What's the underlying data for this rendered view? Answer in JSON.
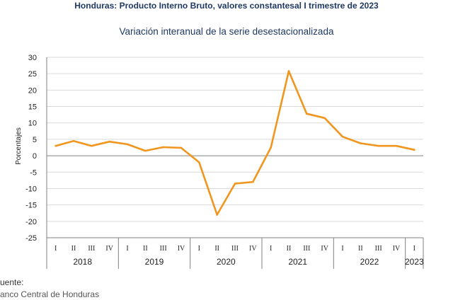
{
  "header": {
    "title": "Honduras: Producto Interno Bruto, valores constantesal I trimestre de 2023",
    "subtitle": "Variación interanual de la serie desestacionalizada"
  },
  "footer": {
    "source_label": "uente:",
    "source_text": "anco Central de Honduras"
  },
  "colors": {
    "line": "#f0961e",
    "grid": "#d9d9d9",
    "axis": "#808080"
  },
  "chart_data": {
    "type": "line",
    "title": "Variación interanual de la serie desestacionalizada",
    "xlabel": "",
    "ylabel": "Porcentajes",
    "ylim": [
      -25,
      30
    ],
    "yticks": [
      "30",
      "25",
      "20",
      "15",
      "10",
      "5",
      "0",
      "-5",
      "-10",
      "-15",
      "-20",
      "-25"
    ],
    "grid": true,
    "legend": "none",
    "categories": [
      "I",
      "II",
      "III",
      "IV",
      "I",
      "II",
      "III",
      "IV",
      "I",
      "II",
      "III",
      "IV",
      "I",
      "II",
      "III",
      "IV",
      "I",
      "II",
      "III",
      "IV",
      "I"
    ],
    "years": [
      {
        "label": "2018",
        "quarters": 4
      },
      {
        "label": "2019",
        "quarters": 4
      },
      {
        "label": "2020",
        "quarters": 4
      },
      {
        "label": "2021",
        "quarters": 4
      },
      {
        "label": "2022",
        "quarters": 4
      },
      {
        "label": "2023",
        "quarters": 1
      }
    ],
    "series": [
      {
        "values": [
          3.0,
          4.5,
          3.0,
          4.3,
          3.5,
          1.5,
          2.6,
          2.4,
          -2.0,
          -18.0,
          -8.5,
          -8.0,
          2.5,
          25.8,
          12.8,
          11.5,
          5.8,
          3.8,
          3.0,
          3.0,
          1.8
        ]
      }
    ]
  }
}
